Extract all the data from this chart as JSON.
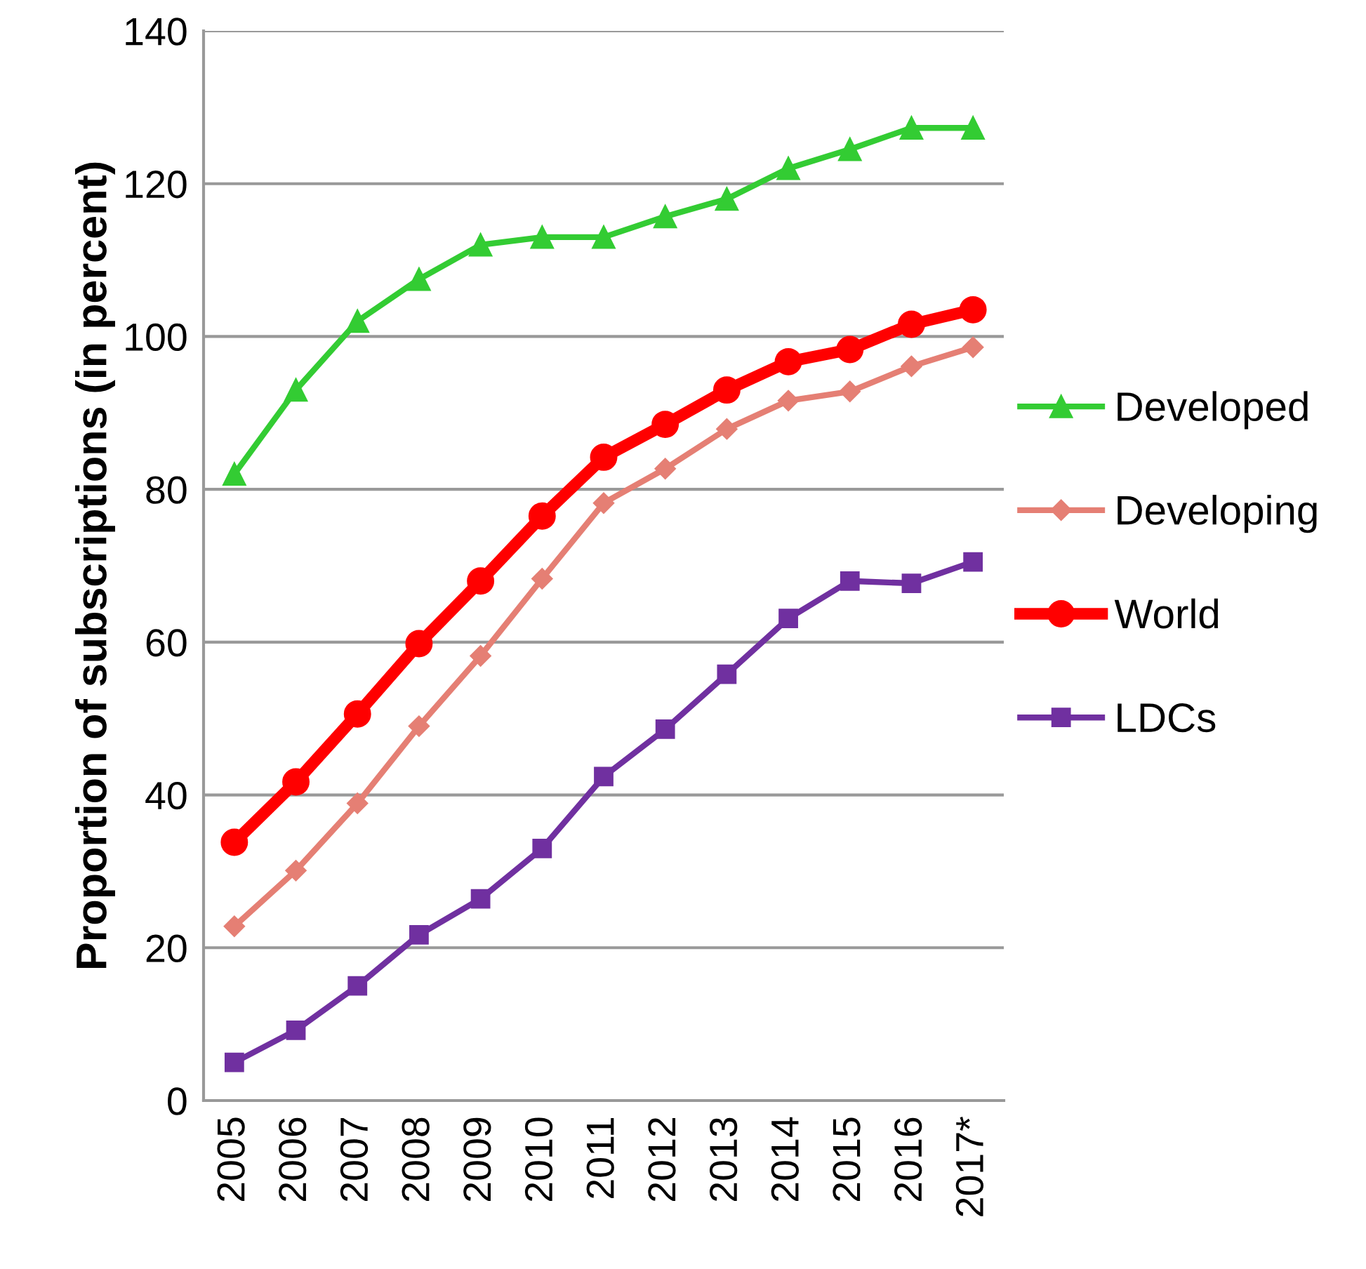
{
  "chart_data": {
    "type": "line",
    "ylabel": "Proportion of subscriptions (in percent)",
    "categories": [
      "2005",
      "2006",
      "2007",
      "2008",
      "2009",
      "2010",
      "2011",
      "2012",
      "2013",
      "2014",
      "2015",
      "2016",
      "2017*"
    ],
    "series": [
      {
        "name": "Developed",
        "color": "#33cc33",
        "marker": "triangle",
        "values": [
          82,
          93,
          102,
          107.5,
          112,
          113,
          113,
          115.7,
          118,
          122,
          124.5,
          127.3,
          127.3
        ]
      },
      {
        "name": "Developing",
        "color": "#e57f74",
        "marker": "diamond",
        "values": [
          22.8,
          30.1,
          38.9,
          49,
          58.2,
          68.3,
          78.2,
          82.7,
          87.9,
          91.6,
          92.8,
          96.1,
          98.6
        ]
      },
      {
        "name": "World",
        "color": "#ff0000",
        "marker": "circle",
        "values": [
          33.8,
          41.7,
          50.6,
          59.8,
          68,
          76.5,
          84.2,
          88.5,
          93,
          96.7,
          98.3,
          101.6,
          103.5
        ]
      },
      {
        "name": "LDCs",
        "color": "#7030a0",
        "marker": "square",
        "values": [
          5,
          9.2,
          15,
          21.7,
          26.4,
          33,
          42.4,
          48.6,
          55.8,
          63.1,
          68,
          67.7,
          70.5
        ]
      }
    ],
    "ylim": [
      0,
      140
    ],
    "yticks": [
      0,
      20,
      40,
      60,
      80,
      100,
      120,
      140
    ],
    "grid": "y",
    "legend": "right"
  }
}
